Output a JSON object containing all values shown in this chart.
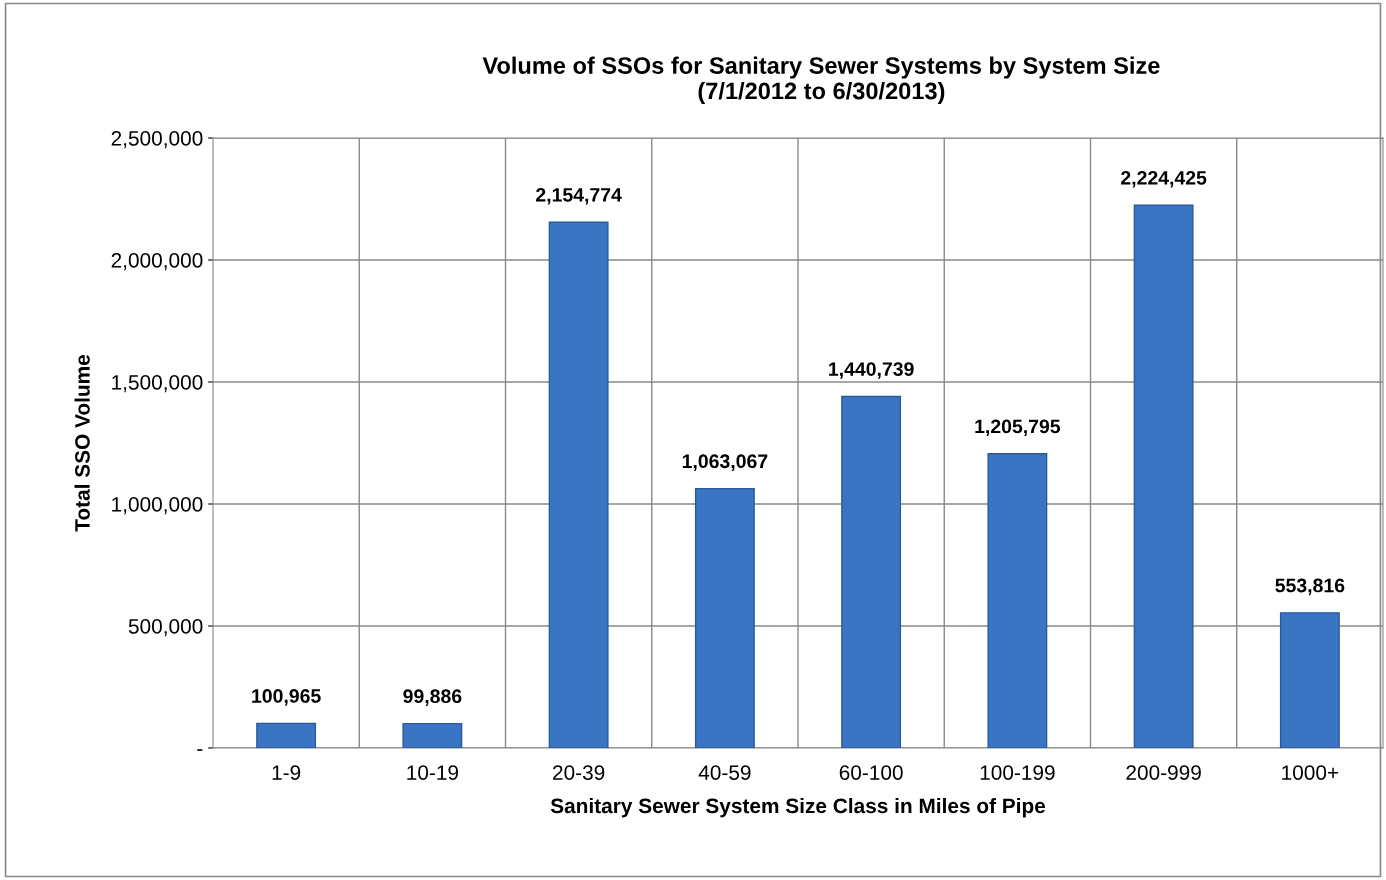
{
  "chart_data": {
    "type": "bar",
    "title": "Volume of SSOs for Sanitary Sewer Systems by System Size\n(7/1/2012 to 6/30/2013)",
    "xlabel": "Sanitary Sewer System Size Class in Miles of Pipe",
    "ylabel": "Total SSO Volume",
    "categories": [
      "1-9",
      "10-19",
      "20-39",
      "40-59",
      "60-100",
      "100-199",
      "200-999",
      "1000+"
    ],
    "values": [
      100965,
      99886,
      2154774,
      1063067,
      1440739,
      1205795,
      2224425,
      553816
    ],
    "value_labels": [
      "100,965",
      "99,886",
      "2,154,774",
      "1,063,067",
      "1,440,739",
      "1,205,795",
      "2,224,425",
      "553,816"
    ],
    "color": "#3a75c4",
    "ylim": [
      0,
      2500000
    ],
    "yticks": [
      {
        "value": 0,
        "label": "-"
      },
      {
        "value": 500000,
        "label": "500,000"
      },
      {
        "value": 1000000,
        "label": "1,000,000"
      },
      {
        "value": 1500000,
        "label": "1,500,000"
      },
      {
        "value": 2000000,
        "label": "2,000,000"
      },
      {
        "value": 2500000,
        "label": "2,500,000"
      }
    ],
    "grid": true,
    "legend": false
  }
}
